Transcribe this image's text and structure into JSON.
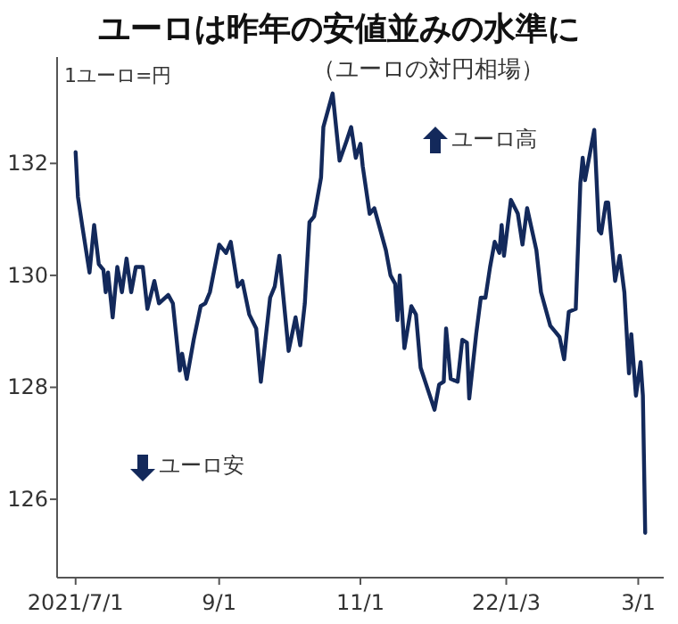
{
  "chart_data": {
    "type": "line",
    "title": "ユーロは昨年の安値並みの水準に",
    "subtitle": "（ユーロの対円相場）",
    "ylabel": "1ユーロ=円",
    "annotations": [
      "ユーロ高",
      "ユーロ安"
    ],
    "xlim": [
      "2021-06-23",
      "2022-03-12"
    ],
    "ylim": [
      124.6,
      133.9
    ],
    "xticks": [
      {
        "value": "2021-07-01",
        "label": "2021/7/1"
      },
      {
        "value": "2021-09-01",
        "label": "9/1"
      },
      {
        "value": "2021-11-01",
        "label": "11/1"
      },
      {
        "value": "2022-01-03",
        "label": "22/1/3"
      },
      {
        "value": "2022-03-01",
        "label": "3/1"
      }
    ],
    "yticks": [
      126,
      128,
      130,
      132
    ],
    "marker": "none",
    "line_style": "solid",
    "series": [
      {
        "color": "#13295b",
        "x": [
          "2021-07-01",
          "2021-07-02",
          "2021-07-04",
          "2021-07-07",
          "2021-07-09",
          "2021-07-11",
          "2021-07-13",
          "2021-07-14",
          "2021-07-15",
          "2021-07-17",
          "2021-07-19",
          "2021-07-21",
          "2021-07-23",
          "2021-07-25",
          "2021-07-27",
          "2021-07-30",
          "2021-08-01",
          "2021-08-04",
          "2021-08-06",
          "2021-08-10",
          "2021-08-12",
          "2021-08-15",
          "2021-08-16",
          "2021-08-18",
          "2021-08-21",
          "2021-08-24",
          "2021-08-26",
          "2021-08-28",
          "2021-09-01",
          "2021-09-04",
          "2021-09-06",
          "2021-09-09",
          "2021-09-11",
          "2021-09-14",
          "2021-09-17",
          "2021-09-19",
          "2021-09-23",
          "2021-09-25",
          "2021-09-27",
          "2021-10-01",
          "2021-10-04",
          "2021-10-06",
          "2021-10-08",
          "2021-10-10",
          "2021-10-12",
          "2021-10-15",
          "2021-10-16",
          "2021-10-20",
          "2021-10-23",
          "2021-10-26",
          "2021-10-28",
          "2021-10-30",
          "2021-11-01",
          "2021-11-02",
          "2021-11-05",
          "2021-11-07",
          "2021-11-09",
          "2021-11-12",
          "2021-11-14",
          "2021-11-16",
          "2021-11-17",
          "2021-11-18",
          "2021-11-20",
          "2021-11-23",
          "2021-11-25",
          "2021-11-27",
          "2021-12-01",
          "2021-12-03",
          "2021-12-05",
          "2021-12-07",
          "2021-12-08",
          "2021-12-10",
          "2021-12-13",
          "2021-12-15",
          "2021-12-17",
          "2021-12-18",
          "2021-12-21",
          "2021-12-23",
          "2021-12-25",
          "2021-12-27",
          "2021-12-29",
          "2021-12-31",
          "2022-01-01",
          "2022-01-02",
          "2022-01-05",
          "2022-01-08",
          "2022-01-10",
          "2022-01-12",
          "2022-01-16",
          "2022-01-18",
          "2022-01-22",
          "2022-01-24",
          "2022-01-26",
          "2022-01-28",
          "2022-01-30",
          "2022-02-02",
          "2022-02-04",
          "2022-02-05",
          "2022-02-06",
          "2022-02-10",
          "2022-02-12",
          "2022-02-13",
          "2022-02-15",
          "2022-02-16",
          "2022-02-19",
          "2022-02-21",
          "2022-02-23",
          "2022-02-25",
          "2022-02-26",
          "2022-02-28",
          "2022-03-02",
          "2022-03-03",
          "2022-03-04"
        ],
        "values": [
          132.2,
          131.4,
          130.85,
          130.05,
          130.9,
          130.2,
          130.1,
          129.7,
          130.05,
          129.25,
          130.15,
          129.7,
          130.3,
          129.7,
          130.15,
          130.15,
          129.4,
          129.9,
          129.5,
          129.65,
          129.5,
          128.3,
          128.6,
          128.15,
          128.85,
          129.45,
          129.5,
          129.7,
          130.55,
          130.4,
          130.6,
          129.8,
          129.9,
          129.3,
          129.05,
          128.1,
          129.6,
          129.8,
          130.35,
          128.65,
          129.25,
          128.75,
          129.5,
          130.95,
          131.05,
          131.75,
          132.65,
          133.25,
          132.05,
          132.4,
          132.65,
          132.1,
          132.35,
          131.95,
          131.1,
          131.2,
          130.9,
          130.45,
          130.0,
          129.85,
          129.2,
          130.0,
          128.7,
          129.45,
          129.3,
          128.35,
          127.85,
          127.6,
          128.05,
          128.1,
          129.05,
          128.15,
          128.1,
          128.85,
          128.8,
          127.8,
          128.95,
          129.6,
          129.6,
          130.15,
          130.6,
          130.4,
          130.9,
          130.35,
          131.35,
          131.1,
          130.55,
          131.2,
          130.45,
          129.7,
          129.1,
          129.0,
          128.9,
          128.5,
          129.35,
          129.4,
          131.65,
          132.1,
          131.7,
          132.6,
          130.8,
          130.75,
          131.3,
          131.3,
          129.9,
          130.35,
          129.7,
          128.25,
          128.95,
          127.85,
          128.45,
          127.85,
          125.4
        ]
      }
    ]
  }
}
